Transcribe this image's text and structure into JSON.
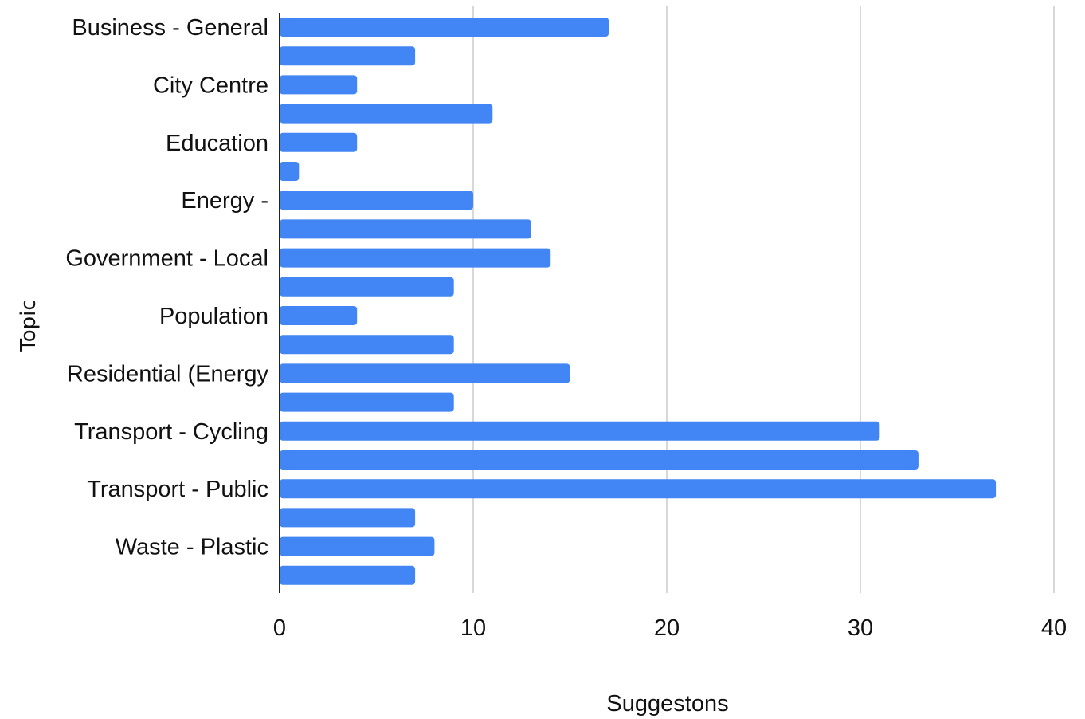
{
  "chart_data": {
    "type": "bar",
    "orientation": "horizontal",
    "title": "",
    "xlabel": "Suggestons",
    "ylabel": "Topic",
    "xlim": [
      0,
      40
    ],
    "xticks": [
      "0",
      "10",
      "20",
      "30",
      "40"
    ],
    "grid": "vertical",
    "legend": "none",
    "bar_color": "#4285f4",
    "categories": [
      "Business - General",
      "",
      "City Centre",
      "",
      "Education",
      "",
      "Energy -",
      "",
      "Government - Local",
      "",
      "Population",
      "",
      "Residential (Energy",
      "",
      "Transport - Cycling",
      "",
      "Transport - Public",
      "",
      "Waste - Plastic",
      ""
    ],
    "values": [
      17,
      7,
      4,
      11,
      4,
      1,
      10,
      13,
      14,
      9,
      4,
      9,
      15,
      9,
      31,
      33,
      37,
      7,
      8,
      7
    ]
  }
}
